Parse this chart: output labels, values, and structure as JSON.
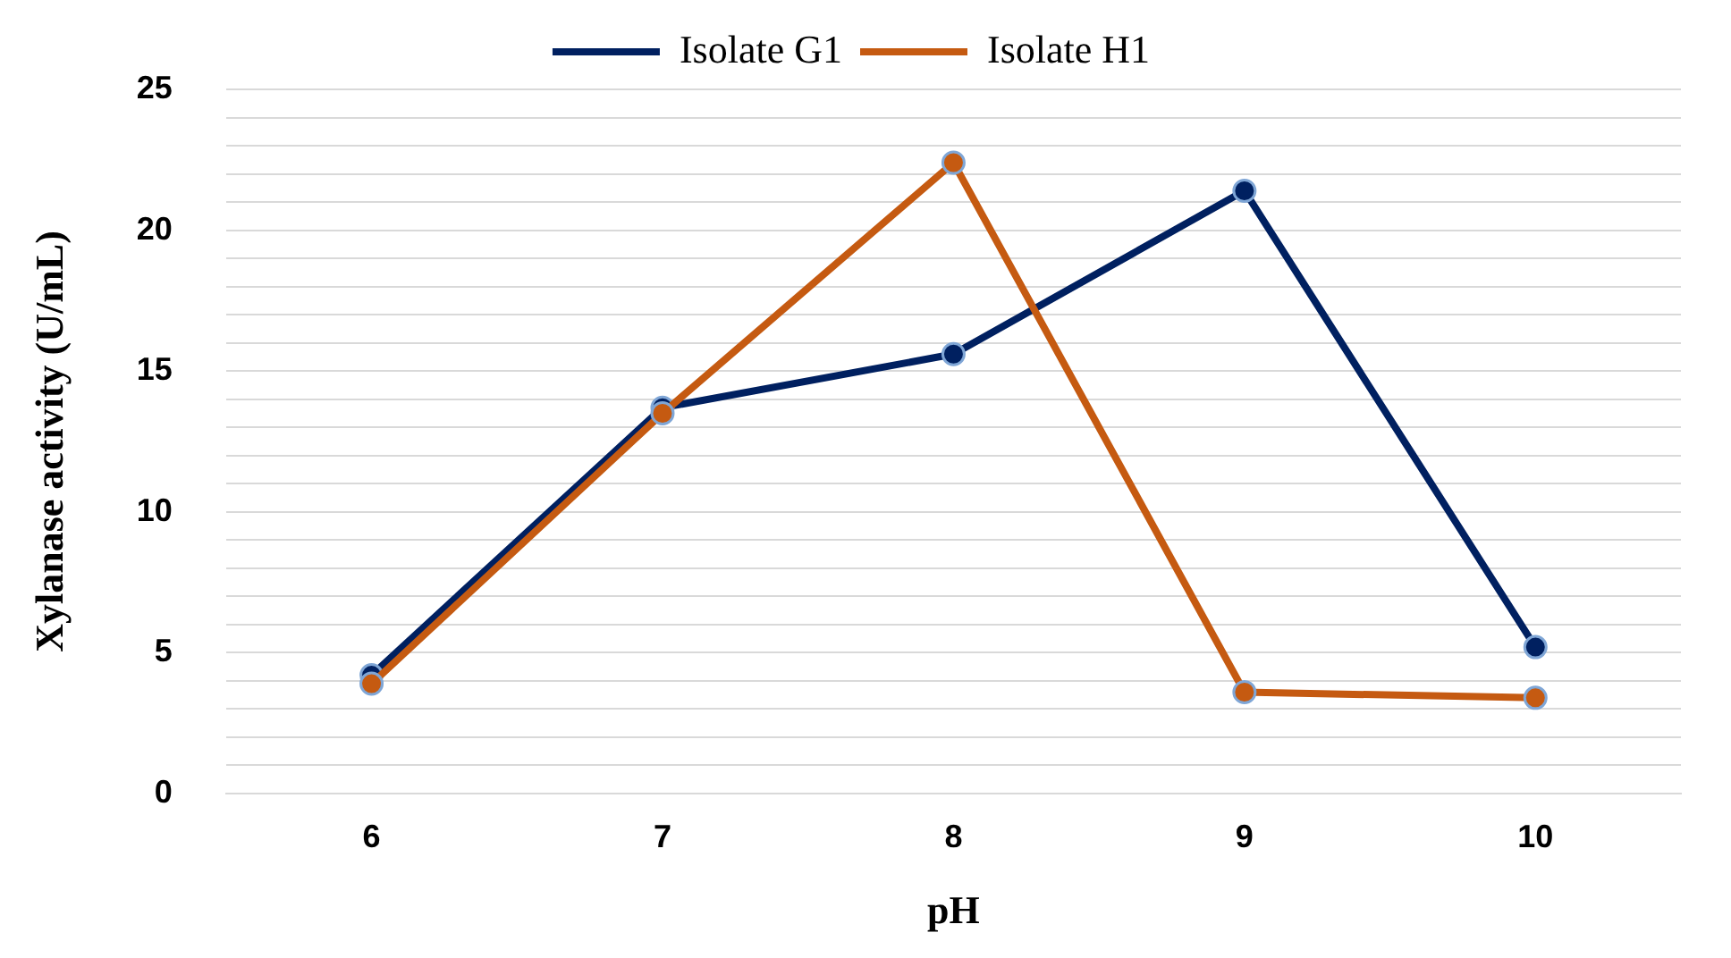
{
  "chart_data": {
    "type": "line",
    "xlabel": "pH",
    "ylabel": "Xylanase activity (U/mL)",
    "categories": [
      "6",
      "7",
      "8",
      "9",
      "10"
    ],
    "series": [
      {
        "name": "Isolate G1",
        "color": "#002060",
        "values": [
          4.2,
          13.7,
          15.6,
          21.4,
          5.2
        ]
      },
      {
        "name": "Isolate H1",
        "color": "#c55a11",
        "values": [
          3.9,
          13.5,
          22.4,
          3.6,
          3.4
        ]
      }
    ],
    "ylim": [
      0,
      25
    ],
    "yticks": [
      0,
      {
        "value": 1,
        "label": null
      },
      {
        "value": 2,
        "label": null
      },
      {
        "value": 3,
        "label": null
      },
      {
        "value": 4,
        "label": null
      },
      5,
      {
        "value": 6,
        "label": null
      },
      {
        "value": 7,
        "label": null
      },
      {
        "value": 8,
        "label": null
      },
      {
        "value": 9,
        "label": null
      },
      10,
      {
        "value": 11,
        "label": null
      },
      {
        "value": 12,
        "label": null
      },
      {
        "value": 13,
        "label": null
      },
      {
        "value": 14,
        "label": null
      },
      15,
      {
        "value": 16,
        "label": null
      },
      {
        "value": 17,
        "label": null
      },
      {
        "value": 18,
        "label": null
      },
      {
        "value": 19,
        "label": null
      },
      20,
      {
        "value": 21,
        "label": null
      },
      {
        "value": 22,
        "label": null
      },
      {
        "value": 23,
        "label": null
      },
      {
        "value": 24,
        "label": null
      },
      25
    ],
    "grid": "y",
    "legend": "top",
    "marker": "circle",
    "line_style": "solid"
  }
}
